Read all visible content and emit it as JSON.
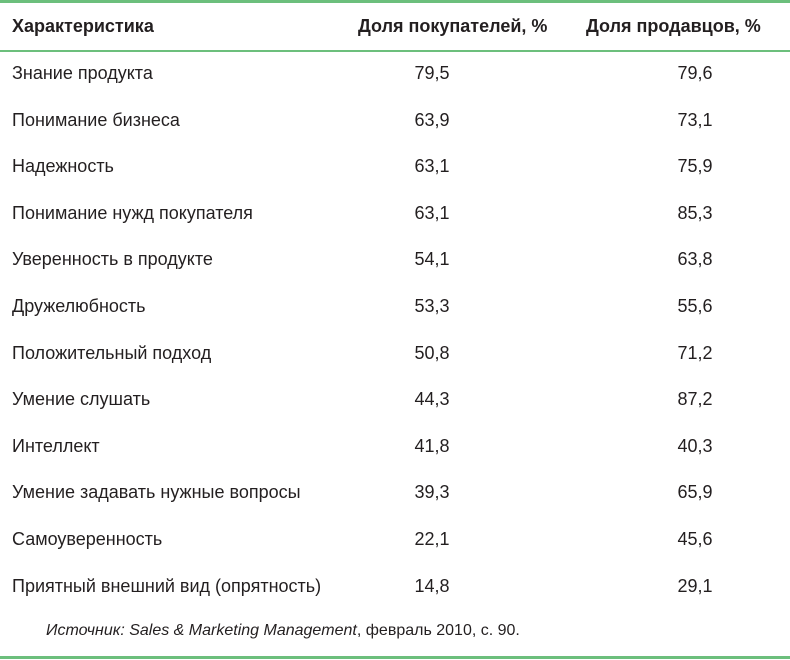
{
  "table": {
    "headers": [
      "Характеристика",
      "Доля покупателей, %",
      "Доля продавцов, %"
    ],
    "rows": [
      [
        "Знание продукта",
        "79,5",
        "79,6"
      ],
      [
        "Понимание бизнеса",
        "63,9",
        "73,1"
      ],
      [
        "Надежность",
        "63,1",
        "75,9"
      ],
      [
        "Понимание нужд покупателя",
        "63,1",
        "85,3"
      ],
      [
        "Уверенность в продукте",
        "54,1",
        "63,8"
      ],
      [
        "Дружелюбность",
        "53,3",
        "55,6"
      ],
      [
        "Положительный подход",
        "50,8",
        "71,2"
      ],
      [
        "Умение слушать",
        "44,3",
        "87,2"
      ],
      [
        "Интеллект",
        "41,8",
        "40,3"
      ],
      [
        "Умение задавать нужные вопросы",
        "39,3",
        "65,9"
      ],
      [
        "Самоуверенность",
        "22,1",
        "45,6"
      ],
      [
        "Приятный внешний вид (опрятность)",
        "14,8",
        "29,1"
      ]
    ]
  },
  "source": {
    "label": "Источник: ",
    "title": "Sales & Marketing Management",
    "rest": ", февраль 2010, с. 90."
  },
  "colors": {
    "rule": "#6cbf7c",
    "text": "#231f20"
  }
}
